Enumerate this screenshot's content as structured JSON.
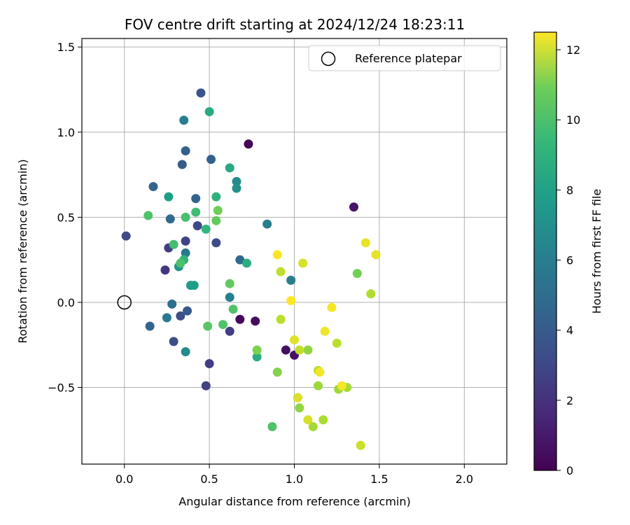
{
  "chart_data": {
    "type": "scatter",
    "title": "FOV centre drift starting at 2024/12/24 18:23:11",
    "xlabel": "Angular distance from reference (arcmin)",
    "ylabel": "Rotation from reference (arcmin)",
    "xlim": [
      -0.25,
      2.25
    ],
    "ylim": [
      -0.95,
      1.55
    ],
    "xticks": [
      0.0,
      0.5,
      1.0,
      1.5,
      2.0
    ],
    "xtick_labels": [
      "0.0",
      "0.5",
      "1.0",
      "1.5",
      "2.0"
    ],
    "yticks": [
      -0.5,
      0.0,
      0.5,
      1.0,
      1.5
    ],
    "ytick_labels": [
      "−0.5",
      "0.0",
      "0.5",
      "1.0",
      "1.5"
    ],
    "grid": true,
    "legend": {
      "placement": "top-right",
      "entries": [
        "Reference platepar"
      ]
    },
    "reference_point": {
      "x": 0.0,
      "y": 0.0,
      "marker": "open-circle"
    },
    "colorbar": {
      "label": "Hours from first FF file",
      "range": [
        0,
        12.5
      ],
      "ticks": [
        0,
        2,
        4,
        6,
        8,
        10,
        12
      ],
      "colormap": "viridis"
    },
    "points": [
      {
        "x": 0.73,
        "y": 0.93,
        "c": 0.1
      },
      {
        "x": 0.68,
        "y": -0.1,
        "c": 0.3
      },
      {
        "x": 0.77,
        "y": -0.11,
        "c": 0.4
      },
      {
        "x": 0.95,
        "y": -0.28,
        "c": 0.5
      },
      {
        "x": 1.0,
        "y": -0.31,
        "c": 0.6
      },
      {
        "x": 1.35,
        "y": 0.56,
        "c": 0.7
      },
      {
        "x": 0.62,
        "y": -0.17,
        "c": 2.2
      },
      {
        "x": 0.5,
        "y": -0.36,
        "c": 2.3
      },
      {
        "x": 0.48,
        "y": -0.49,
        "c": 2.4
      },
      {
        "x": 0.24,
        "y": 0.19,
        "c": 2.0
      },
      {
        "x": 0.26,
        "y": 0.32,
        "c": 2.2
      },
      {
        "x": 0.43,
        "y": 0.45,
        "c": 2.6
      },
      {
        "x": 0.36,
        "y": 0.36,
        "c": 2.5
      },
      {
        "x": 0.54,
        "y": 0.35,
        "c": 2.9
      },
      {
        "x": 0.01,
        "y": 0.39,
        "c": 2.8
      },
      {
        "x": 0.29,
        "y": -0.23,
        "c": 2.9
      },
      {
        "x": 0.33,
        "y": -0.08,
        "c": 3.0
      },
      {
        "x": 0.37,
        "y": -0.05,
        "c": 3.5
      },
      {
        "x": 0.45,
        "y": 1.23,
        "c": 3.2
      },
      {
        "x": 0.34,
        "y": 0.81,
        "c": 3.6
      },
      {
        "x": 0.36,
        "y": 0.89,
        "c": 3.8
      },
      {
        "x": 0.51,
        "y": 0.84,
        "c": 3.8
      },
      {
        "x": 0.17,
        "y": 0.68,
        "c": 4.0
      },
      {
        "x": 0.42,
        "y": 0.61,
        "c": 4.0
      },
      {
        "x": 0.27,
        "y": 0.49,
        "c": 4.3
      },
      {
        "x": 0.15,
        "y": -0.14,
        "c": 4.0
      },
      {
        "x": 0.28,
        "y": -0.01,
        "c": 4.5
      },
      {
        "x": 0.68,
        "y": 0.25,
        "c": 4.2
      },
      {
        "x": 0.36,
        "y": 0.29,
        "c": 5.0
      },
      {
        "x": 0.25,
        "y": -0.09,
        "c": 5.0
      },
      {
        "x": 0.35,
        "y": 1.07,
        "c": 5.4
      },
      {
        "x": 0.84,
        "y": 0.46,
        "c": 5.3
      },
      {
        "x": 0.98,
        "y": 0.13,
        "c": 5.3
      },
      {
        "x": 0.62,
        "y": 0.03,
        "c": 5.5
      },
      {
        "x": 0.36,
        "y": -0.29,
        "c": 6.0
      },
      {
        "x": 0.66,
        "y": 0.71,
        "c": 6.0
      },
      {
        "x": 0.66,
        "y": 0.67,
        "c": 6.3
      },
      {
        "x": 0.32,
        "y": 0.21,
        "c": 6.5
      },
      {
        "x": 0.39,
        "y": 0.1,
        "c": 6.8
      },
      {
        "x": 0.41,
        "y": 0.1,
        "c": 7.0
      },
      {
        "x": 0.26,
        "y": 0.62,
        "c": 7.0
      },
      {
        "x": 0.62,
        "y": 0.79,
        "c": 7.5
      },
      {
        "x": 0.5,
        "y": 1.12,
        "c": 7.6
      },
      {
        "x": 0.72,
        "y": 0.23,
        "c": 7.8
      },
      {
        "x": 0.78,
        "y": -0.32,
        "c": 7.8
      },
      {
        "x": 0.54,
        "y": 0.62,
        "c": 8.0
      },
      {
        "x": 0.48,
        "y": 0.43,
        "c": 8.2
      },
      {
        "x": 0.35,
        "y": 0.25,
        "c": 8.2
      },
      {
        "x": 0.42,
        "y": 0.53,
        "c": 8.6
      },
      {
        "x": 0.36,
        "y": 0.5,
        "c": 8.8
      },
      {
        "x": 0.14,
        "y": 0.51,
        "c": 9.0
      },
      {
        "x": 0.29,
        "y": 0.34,
        "c": 8.7
      },
      {
        "x": 0.33,
        "y": 0.23,
        "c": 8.9
      },
      {
        "x": 0.64,
        "y": -0.04,
        "c": 9.0
      },
      {
        "x": 0.58,
        "y": -0.13,
        "c": 9.0
      },
      {
        "x": 0.49,
        "y": -0.14,
        "c": 9.2
      },
      {
        "x": 0.87,
        "y": -0.73,
        "c": 9.0
      },
      {
        "x": 0.62,
        "y": 0.11,
        "c": 9.4
      },
      {
        "x": 0.54,
        "y": 0.48,
        "c": 9.5
      },
      {
        "x": 0.55,
        "y": 0.54,
        "c": 9.7
      },
      {
        "x": 1.37,
        "y": 0.17,
        "c": 9.8
      },
      {
        "x": 0.78,
        "y": -0.28,
        "c": 10.0
      },
      {
        "x": 0.9,
        "y": -0.41,
        "c": 10.1
      },
      {
        "x": 1.03,
        "y": -0.62,
        "c": 10.4
      },
      {
        "x": 1.02,
        "y": -0.56,
        "c": 10.5
      },
      {
        "x": 1.08,
        "y": -0.28,
        "c": 10.4
      },
      {
        "x": 1.14,
        "y": -0.49,
        "c": 10.6
      },
      {
        "x": 1.11,
        "y": -0.73,
        "c": 10.8
      },
      {
        "x": 1.17,
        "y": -0.69,
        "c": 10.9
      },
      {
        "x": 1.31,
        "y": -0.5,
        "c": 10.8
      },
      {
        "x": 1.26,
        "y": -0.51,
        "c": 10.7
      },
      {
        "x": 1.25,
        "y": -0.24,
        "c": 11.2
      },
      {
        "x": 1.45,
        "y": 0.05,
        "c": 11.0
      },
      {
        "x": 0.92,
        "y": 0.18,
        "c": 11.3
      },
      {
        "x": 0.92,
        "y": -0.1,
        "c": 11.2
      },
      {
        "x": 1.03,
        "y": -0.28,
        "c": 11.3
      },
      {
        "x": 1.14,
        "y": -0.4,
        "c": 11.3
      },
      {
        "x": 1.05,
        "y": 0.23,
        "c": 11.7
      },
      {
        "x": 1.39,
        "y": -0.84,
        "c": 11.5
      },
      {
        "x": 1.02,
        "y": -0.56,
        "c": 11.8
      },
      {
        "x": 1.08,
        "y": -0.69,
        "c": 11.7
      },
      {
        "x": 1.0,
        "y": -0.22,
        "c": 11.9
      },
      {
        "x": 1.48,
        "y": 0.28,
        "c": 12.0
      },
      {
        "x": 1.42,
        "y": 0.35,
        "c": 12.1
      },
      {
        "x": 1.22,
        "y": -0.03,
        "c": 12.3
      },
      {
        "x": 1.18,
        "y": -0.17,
        "c": 12.2
      },
      {
        "x": 1.15,
        "y": -0.41,
        "c": 12.3
      },
      {
        "x": 1.28,
        "y": -0.49,
        "c": 12.3
      },
      {
        "x": 0.9,
        "y": 0.28,
        "c": 12.4
      },
      {
        "x": 0.98,
        "y": 0.01,
        "c": 12.5
      }
    ]
  }
}
